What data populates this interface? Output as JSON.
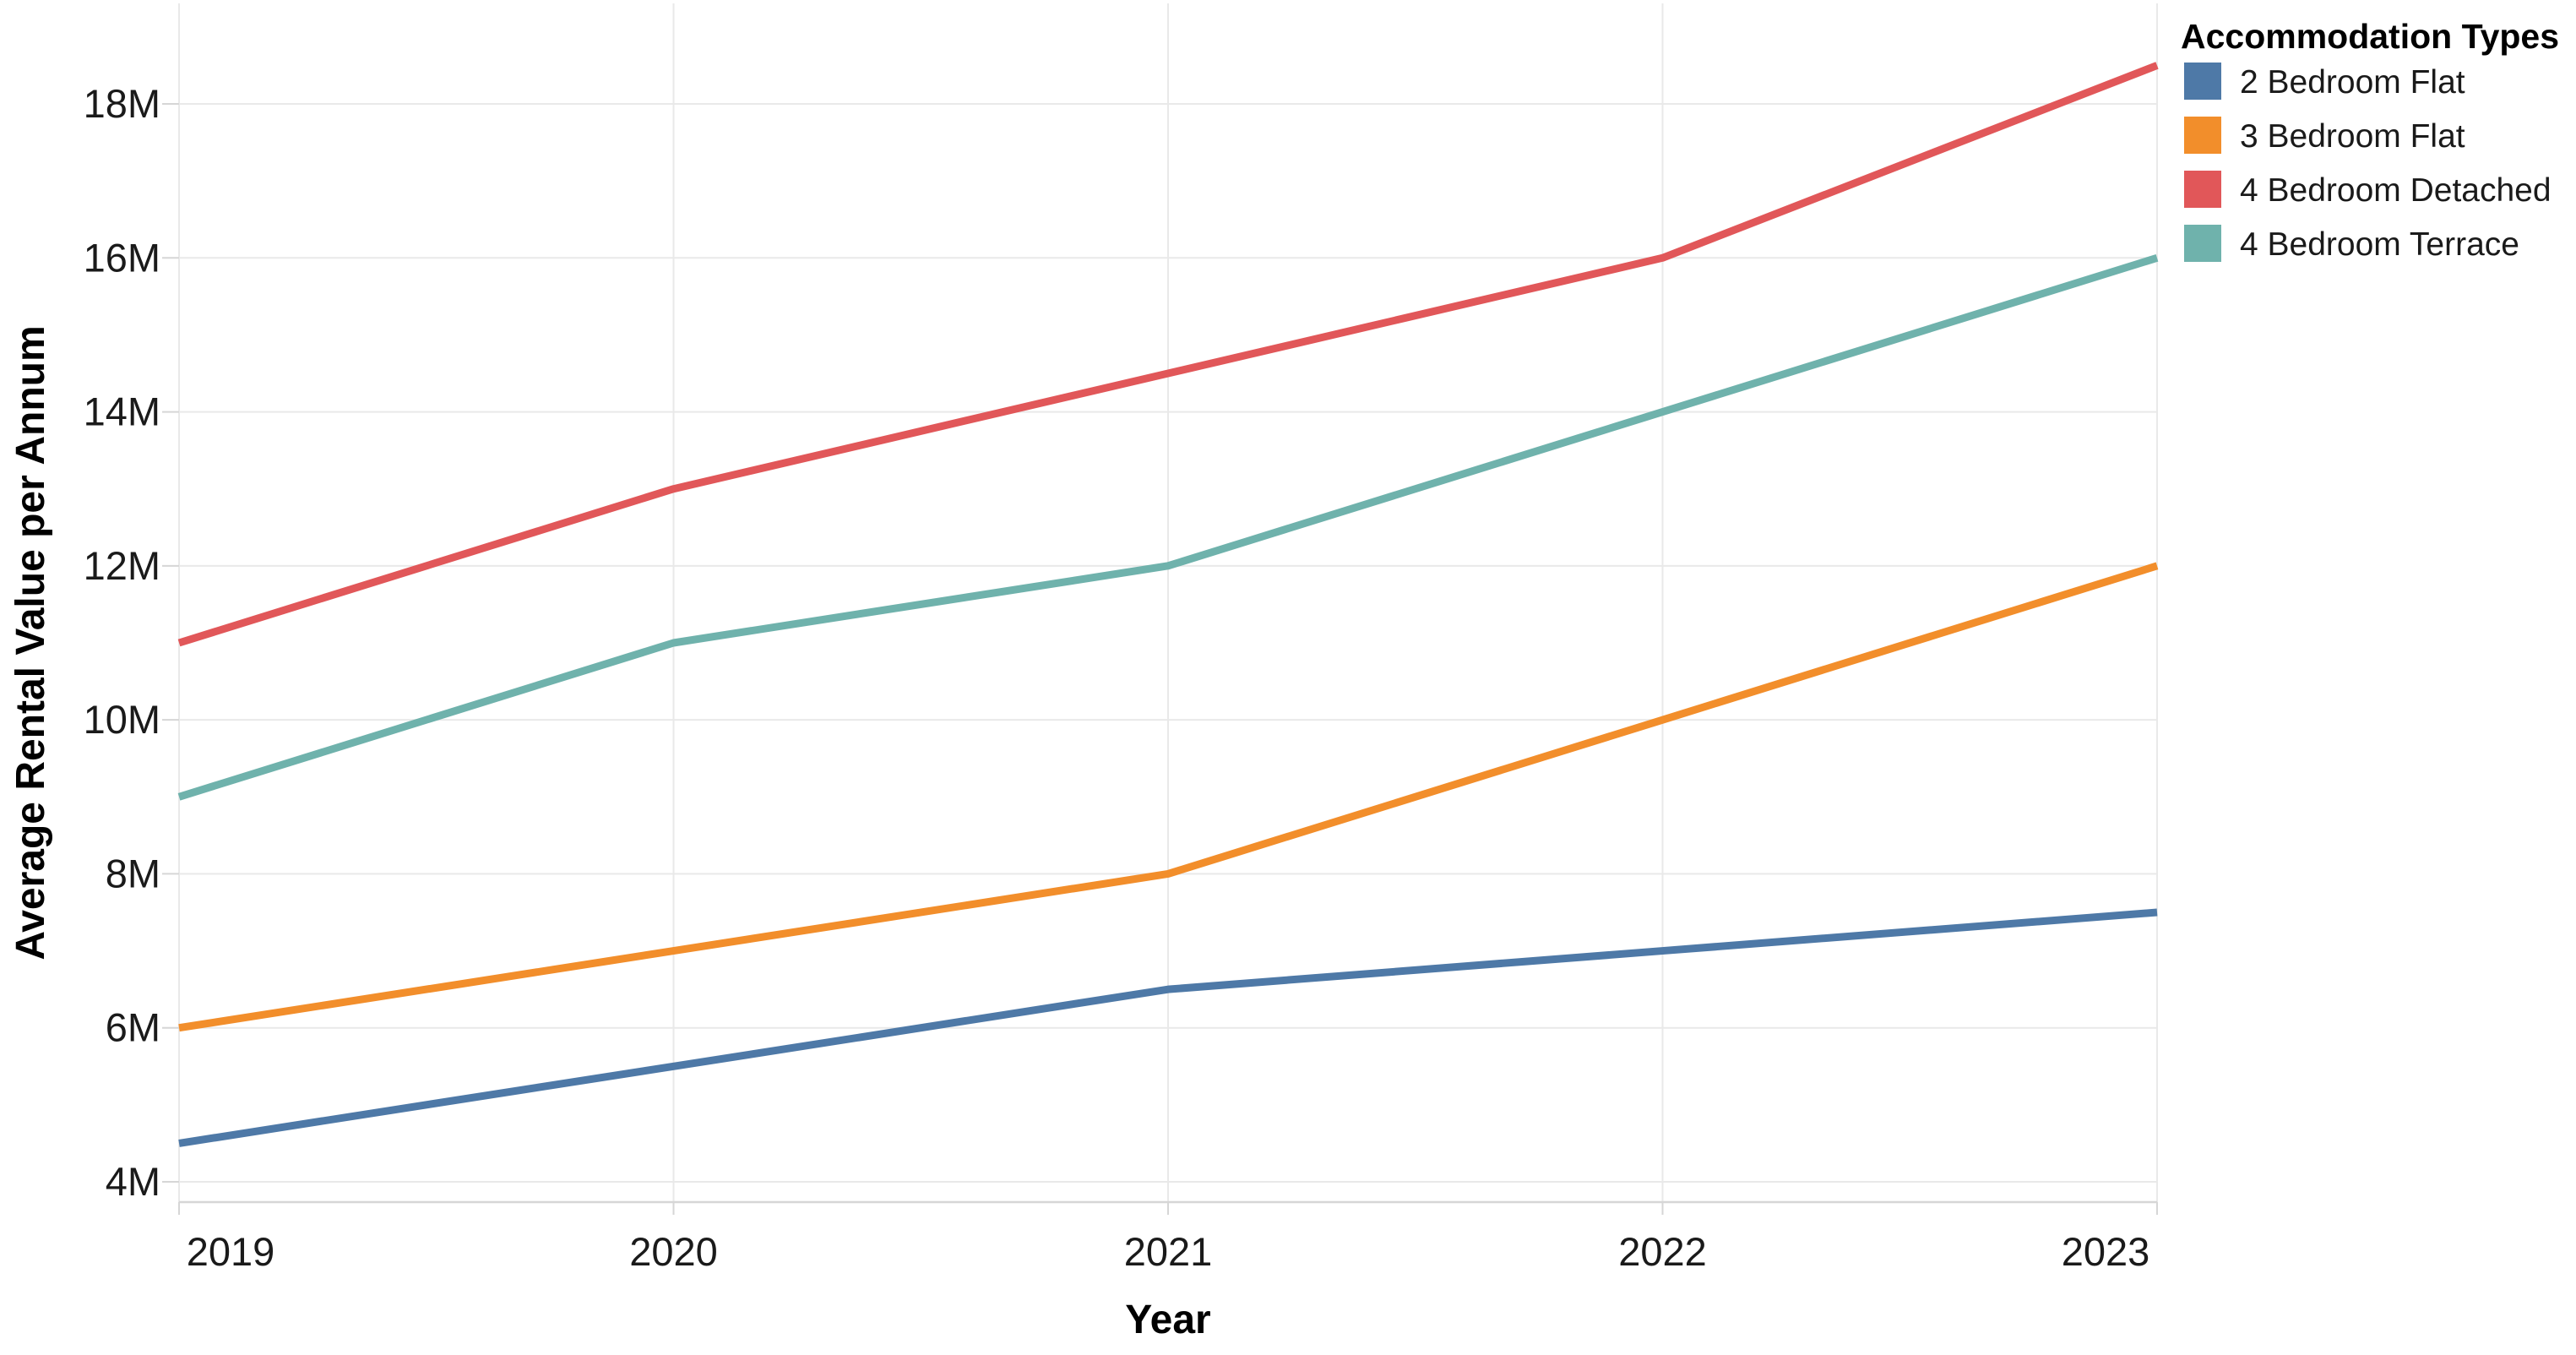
{
  "chart_data": {
    "type": "line",
    "title": "",
    "xlabel": "Year",
    "ylabel": "Average Rental Value per Annum",
    "legend_title": "Accommodation Types",
    "legend_position": "top-right",
    "grid": true,
    "categories": [
      "2019",
      "2020",
      "2021",
      "2022",
      "2023"
    ],
    "y_tick_values": [
      4,
      6,
      8,
      10,
      12,
      14,
      16,
      18
    ],
    "y_tick_labels": [
      "4M",
      "6M",
      "8M",
      "10M",
      "12M",
      "14M",
      "16M",
      "18M"
    ],
    "ylim_m": [
      4,
      18
    ],
    "y_unit_suffix": "M",
    "series": [
      {
        "name": "2 Bedroom Flat",
        "color": "#4e79a7",
        "values_m": [
          4.5,
          5.5,
          6.5,
          7,
          7.5
        ]
      },
      {
        "name": "3 Bedroom Flat",
        "color": "#f28e2b",
        "values_m": [
          6,
          7,
          8,
          10,
          12
        ]
      },
      {
        "name": "4 Bedroom Detached",
        "color": "#e15759",
        "values_m": [
          11,
          13,
          14.5,
          16,
          18.5
        ]
      },
      {
        "name": "4 Bedroom Terrace",
        "color": "#6fb2ac",
        "values_m": [
          9,
          11,
          12,
          14,
          16
        ]
      }
    ],
    "colors": {
      "grid": "#e9e9e9",
      "axis": "#d6d6d6",
      "tick_label": "#1a1a1a",
      "title": "#000000",
      "legend_text": "#1a1a1a"
    }
  }
}
